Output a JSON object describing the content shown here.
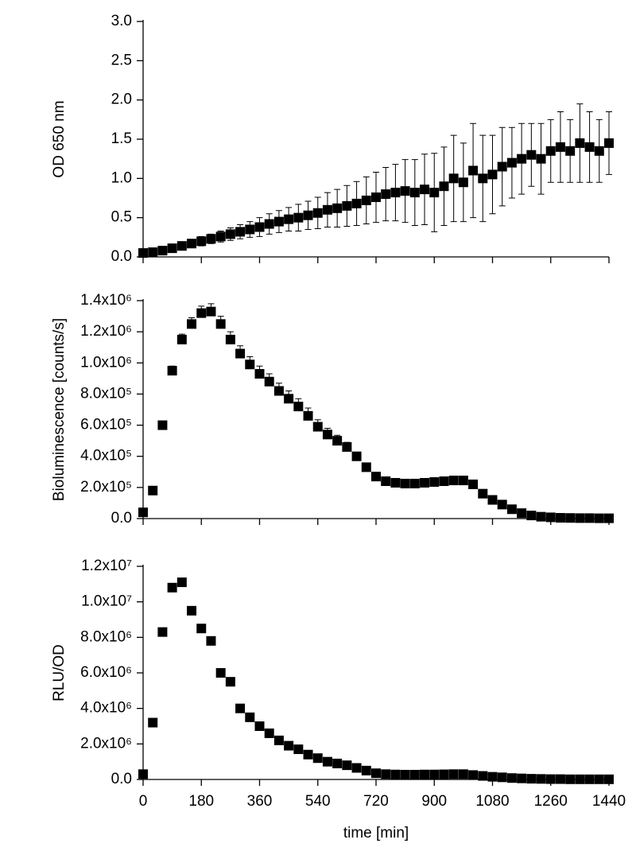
{
  "chart_data": [
    {
      "type": "scatter",
      "ylabel": "OD 650 nm",
      "color": "#000000",
      "x": [
        0,
        30,
        60,
        90,
        120,
        150,
        180,
        210,
        240,
        270,
        300,
        330,
        360,
        390,
        420,
        450,
        480,
        510,
        540,
        570,
        600,
        630,
        660,
        690,
        720,
        750,
        780,
        810,
        840,
        870,
        900,
        930,
        960,
        990,
        1020,
        1050,
        1080,
        1110,
        1140,
        1170,
        1200,
        1230,
        1260,
        1290,
        1320,
        1350,
        1380,
        1410,
        1440
      ],
      "values": [
        0.05,
        0.06,
        0.08,
        0.11,
        0.14,
        0.17,
        0.2,
        0.23,
        0.26,
        0.29,
        0.32,
        0.35,
        0.38,
        0.42,
        0.45,
        0.48,
        0.5,
        0.53,
        0.56,
        0.6,
        0.62,
        0.65,
        0.68,
        0.72,
        0.76,
        0.8,
        0.82,
        0.84,
        0.82,
        0.86,
        0.82,
        0.9,
        1.0,
        0.95,
        1.1,
        1.0,
        1.05,
        1.15,
        1.2,
        1.25,
        1.3,
        1.25,
        1.35,
        1.4,
        1.35,
        1.45,
        1.4,
        1.35,
        1.45
      ],
      "errors": [
        0.02,
        0.02,
        0.03,
        0.04,
        0.05,
        0.05,
        0.06,
        0.06,
        0.07,
        0.08,
        0.09,
        0.1,
        0.12,
        0.13,
        0.14,
        0.15,
        0.17,
        0.18,
        0.2,
        0.22,
        0.24,
        0.26,
        0.28,
        0.3,
        0.32,
        0.34,
        0.36,
        0.4,
        0.42,
        0.45,
        0.5,
        0.5,
        0.55,
        0.5,
        0.6,
        0.55,
        0.5,
        0.5,
        0.45,
        0.45,
        0.4,
        0.45,
        0.4,
        0.45,
        0.4,
        0.5,
        0.45,
        0.4,
        0.4
      ],
      "error_sides": "both",
      "xlim": [
        0,
        1440
      ],
      "xticks": [
        0,
        180,
        360,
        540,
        720,
        900,
        1080,
        1260,
        1440
      ],
      "ylim": [
        0,
        3
      ],
      "yticks": [
        {
          "value": 0,
          "label": "0.0"
        },
        0.5,
        {
          "value": 1,
          "label": "1.0"
        },
        1.5,
        {
          "value": 2,
          "label": "2.0"
        },
        2.5,
        {
          "value": 3,
          "label": "3.0"
        }
      ]
    },
    {
      "type": "scatter",
      "ylabel": "Bioluminescence [counts/s]",
      "color": "#000000",
      "x": [
        0,
        30,
        60,
        90,
        120,
        150,
        180,
        210,
        240,
        270,
        300,
        330,
        360,
        390,
        420,
        450,
        480,
        510,
        540,
        570,
        600,
        630,
        660,
        690,
        720,
        750,
        780,
        810,
        840,
        870,
        900,
        930,
        960,
        990,
        1020,
        1050,
        1080,
        1110,
        1140,
        1170,
        1200,
        1230,
        1260,
        1290,
        1320,
        1350,
        1380,
        1410,
        1440
      ],
      "values": [
        40000,
        180000,
        600000,
        950000,
        1150000,
        1250000,
        1320000,
        1330000,
        1250000,
        1150000,
        1060000,
        990000,
        930000,
        880000,
        820000,
        770000,
        720000,
        660000,
        590000,
        540000,
        500000,
        460000,
        400000,
        330000,
        270000,
        240000,
        230000,
        225000,
        225000,
        230000,
        235000,
        240000,
        245000,
        245000,
        220000,
        160000,
        120000,
        90000,
        60000,
        35000,
        20000,
        12000,
        8000,
        5000,
        4000,
        3000,
        3000,
        2000,
        2000
      ],
      "errors": [
        5000,
        10000,
        20000,
        30000,
        35000,
        40000,
        45000,
        50000,
        50000,
        50000,
        50000,
        50000,
        50000,
        50000,
        50000,
        50000,
        50000,
        50000,
        45000,
        40000,
        35000,
        30000,
        25000,
        20000,
        15000,
        12000,
        10000,
        10000,
        10000,
        10000,
        10000,
        10000,
        10000,
        10000,
        10000,
        10000,
        8000,
        6000,
        5000,
        4000,
        3000,
        2000,
        2000,
        1000,
        1000,
        1000,
        1000,
        1000,
        1000
      ],
      "error_sides": "upper",
      "xlim": [
        0,
        1440
      ],
      "xticks": [
        0,
        180,
        360,
        540,
        720,
        900,
        1080,
        1260,
        1440
      ],
      "ylim": [
        0,
        1400000
      ],
      "yticks": [
        {
          "value": 0,
          "label": "0.0"
        },
        {
          "value": 200000,
          "label": "2.0x10⁵"
        },
        {
          "value": 400000,
          "label": "4.0x10⁵"
        },
        {
          "value": 600000,
          "label": "6.0x10⁵"
        },
        {
          "value": 800000,
          "label": "8.0x10⁵"
        },
        {
          "value": 1000000,
          "label": "1.0x10⁶"
        },
        {
          "value": 1200000,
          "label": "1.2x10⁶"
        },
        {
          "value": 1400000,
          "label": "1.4x10⁶"
        }
      ]
    },
    {
      "type": "scatter",
      "ylabel": "RLU/OD",
      "xlabel": "time [min]",
      "color": "#000000",
      "x": [
        0,
        30,
        60,
        90,
        120,
        150,
        180,
        210,
        240,
        270,
        300,
        330,
        360,
        390,
        420,
        450,
        480,
        510,
        540,
        570,
        600,
        630,
        660,
        690,
        720,
        750,
        780,
        810,
        840,
        870,
        900,
        930,
        960,
        990,
        1020,
        1050,
        1080,
        1110,
        1140,
        1170,
        1200,
        1230,
        1260,
        1290,
        1320,
        1350,
        1380,
        1410,
        1440
      ],
      "values": [
        300000,
        3200000,
        8300000,
        10800000,
        11100000,
        9500000,
        8500000,
        7800000,
        6000000,
        5500000,
        4000000,
        3500000,
        3000000,
        2600000,
        2200000,
        1900000,
        1700000,
        1400000,
        1200000,
        1000000,
        900000,
        800000,
        650000,
        500000,
        350000,
        300000,
        280000,
        270000,
        270000,
        280000,
        280000,
        290000,
        300000,
        300000,
        250000,
        200000,
        150000,
        120000,
        80000,
        60000,
        40000,
        30000,
        20000,
        20000,
        10000,
        10000,
        10000,
        10000,
        10000
      ],
      "xlim": [
        0,
        1440
      ],
      "xticks": [
        0,
        180,
        360,
        540,
        720,
        900,
        1080,
        1260,
        1440
      ],
      "ylim": [
        0,
        12000000
      ],
      "yticks": [
        {
          "value": 0,
          "label": "0.0"
        },
        {
          "value": 2000000,
          "label": "2.0x10⁶"
        },
        {
          "value": 4000000,
          "label": "4.0x10⁶"
        },
        {
          "value": 6000000,
          "label": "6.0x10⁶"
        },
        {
          "value": 8000000,
          "label": "8.0x10⁶"
        },
        {
          "value": 10000000,
          "label": "1.0x10⁷"
        },
        {
          "value": 12000000,
          "label": "1.2x10⁷"
        }
      ]
    }
  ]
}
